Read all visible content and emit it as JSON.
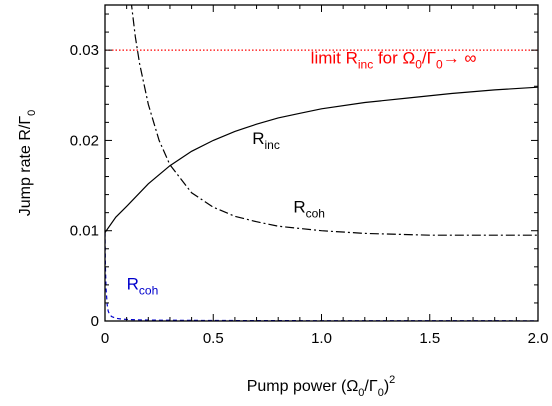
{
  "chart_data": {
    "type": "line",
    "xlabel": "Pump power (Ω0/Γ0)2",
    "ylabel": "Jump rate R/Γ0",
    "xlim": [
      0,
      2.0
    ],
    "ylim": [
      0,
      0.035
    ],
    "x_ticks": [
      0,
      0.5,
      1.0,
      1.5,
      2.0
    ],
    "x_tick_labels": [
      "0",
      "0.5",
      "1.0",
      "1.5",
      "2.0"
    ],
    "y_ticks": [
      0,
      0.01,
      0.02,
      0.03
    ],
    "y_tick_labels": [
      "0",
      "0.01",
      "0.02",
      "0.03"
    ],
    "grid": false,
    "legend": "none",
    "series": [
      {
        "label": "R_inc",
        "style": "solid",
        "color": "#000000",
        "x": [
          0,
          0.05,
          0.1,
          0.2,
          0.3,
          0.4,
          0.5,
          0.6,
          0.7,
          0.8,
          0.9,
          1.0,
          1.2,
          1.4,
          1.6,
          1.8,
          2.0
        ],
        "y": [
          0.0098,
          0.0115,
          0.0127,
          0.0152,
          0.0172,
          0.0188,
          0.02,
          0.021,
          0.0218,
          0.0225,
          0.023,
          0.0235,
          0.0242,
          0.0247,
          0.0252,
          0.0256,
          0.0259
        ]
      },
      {
        "label": "R_coh",
        "style": "dash-dot",
        "color": "#000000",
        "x": [
          0.12,
          0.14,
          0.16,
          0.2,
          0.25,
          0.3,
          0.4,
          0.5,
          0.6,
          0.7,
          0.8,
          1.0,
          1.2,
          1.5,
          1.8,
          2.0
        ],
        "y": [
          0.0355,
          0.0315,
          0.0285,
          0.024,
          0.02,
          0.0173,
          0.0142,
          0.0126,
          0.0116,
          0.011,
          0.0105,
          0.01,
          0.0097,
          0.0095,
          0.0095,
          0.0095
        ]
      },
      {
        "label": "R_coh",
        "style": "dashed",
        "color": "#0000cc",
        "x": [
          0,
          0.002,
          0.005,
          0.01,
          0.015,
          0.02,
          0.03,
          0.05,
          0.08,
          0.12,
          0.2,
          0.5,
          1.0,
          2.0
        ],
        "y": [
          0.0098,
          0.006,
          0.0035,
          0.0018,
          0.0011,
          0.0008,
          0.0005,
          0.0003,
          0.0002,
          0.00015,
          0.0001,
          5e-05,
          3e-05,
          2e-05
        ]
      },
      {
        "label": "limit",
        "style": "dotted",
        "color": "#ff0000",
        "x": [
          0,
          2.0
        ],
        "y": [
          0.03,
          0.03
        ]
      }
    ],
    "annotations": [
      {
        "id": "limit",
        "text": "limit R",
        "sub": "inc",
        "rest": " for Ω",
        "sub2": "0",
        "rest2": "/Γ",
        "sub3": "0",
        "rest3": "→ ∞",
        "color": "#ff0000",
        "x": 0.95,
        "y": 0.0285
      },
      {
        "id": "rinc",
        "text": "R",
        "sub": "inc",
        "color": "#000000",
        "x": 0.68,
        "y": 0.0196
      },
      {
        "id": "rcoh-black",
        "text": "R",
        "sub": "coh",
        "color": "#000000",
        "x": 0.87,
        "y": 0.012
      },
      {
        "id": "rcoh-blue",
        "text": "R",
        "sub": "coh",
        "color": "#0000cc",
        "x": 0.1,
        "y": 0.0035
      }
    ]
  },
  "axis_text": {
    "x_main": "Pump power (Ω",
    "x_sub1": "0",
    "x_mid": "/Γ",
    "x_sub2": "0",
    "x_close": ")",
    "x_sup": "2",
    "y_main": "Jump rate R/Γ",
    "y_sub": "0"
  }
}
